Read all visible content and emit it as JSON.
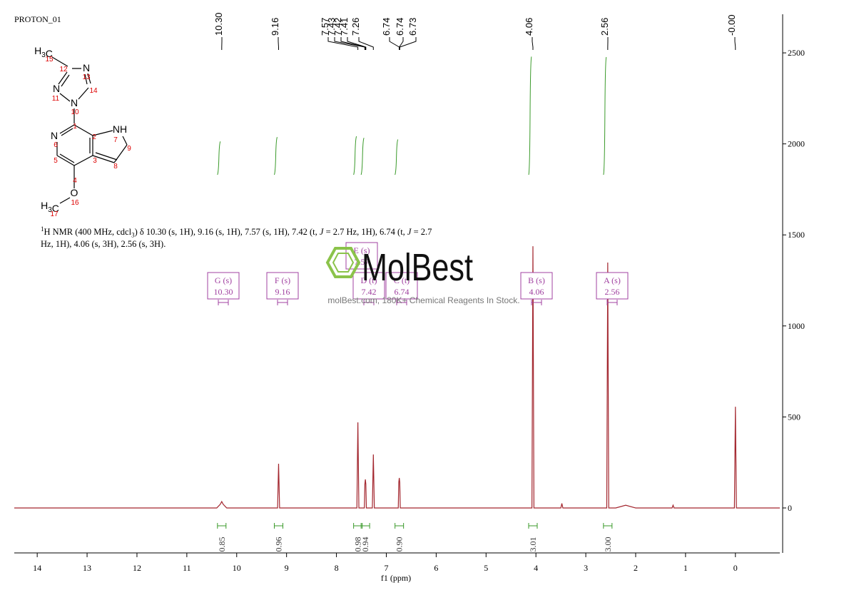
{
  "title": "PROTON_01",
  "caption": [
    "1",
    "H NMR (400 MHz, cdcl",
    "3",
    ") δ 10.30 (s, 1H), 9.16 (s, 1H), 7.57 (s, 1H), 7.42 (t, ",
    "J",
    " = 2.7 Hz, 1H), 6.74 (t, ",
    "J",
    " = 2.7 Hz, 1H), 4.06 (s, 3H), 2.56 (s, 3H)."
  ],
  "structure": {
    "atoms": [
      "H3C",
      "N",
      "N",
      "N",
      "N",
      "NH",
      "O",
      "H3C"
    ],
    "numbers": [
      "1",
      "2",
      "3",
      "4",
      "5",
      "6",
      "7",
      "8",
      "9",
      "10",
      "11",
      "12",
      "13",
      "14",
      "15",
      "16",
      "17"
    ]
  },
  "watermark": {
    "brand": "MolBest",
    "tagline": "molBest.com, 180K+ Chemical Reagents In Stock."
  },
  "chart_data": {
    "type": "line",
    "xlabel": "f1 (ppm)",
    "color": "#a3262e",
    "xlim": [
      14.46,
      -0.89
    ],
    "ylim": [
      -247,
      2712
    ],
    "xticks": [
      14,
      13,
      12,
      11,
      10,
      9,
      8,
      7,
      6,
      5,
      4,
      3,
      2,
      1,
      0
    ],
    "yticks": [
      0,
      500,
      1000,
      1500,
      2000,
      2500
    ],
    "spectrum": {
      "x": [
        14.46,
        10.4,
        10.33,
        10.3,
        10.27,
        10.2,
        9.18,
        9.16,
        9.14,
        7.59,
        7.57,
        7.55,
        7.44,
        7.43,
        7.42,
        7.41,
        7.4,
        7.28,
        7.26,
        7.24,
        6.76,
        6.75,
        6.74,
        6.73,
        6.72,
        4.08,
        4.06,
        4.04,
        3.5,
        3.48,
        3.46,
        2.58,
        2.56,
        2.54,
        2.4,
        2.2,
        2.0,
        1.27,
        1.25,
        1.23,
        0.02,
        0.0,
        -0.02,
        -0.89
      ],
      "values": [
        0,
        0,
        20,
        35,
        20,
        0,
        0,
        243,
        0,
        0,
        470,
        0,
        0,
        130,
        157,
        130,
        0,
        0,
        294,
        0,
        0,
        140,
        165,
        140,
        0,
        0,
        1438,
        0,
        0,
        25,
        0,
        0,
        1348,
        0,
        0,
        15,
        0,
        0,
        15,
        0,
        0,
        556,
        0,
        0
      ]
    },
    "peak_labels": [
      {
        "value": 10.3,
        "label": "10.30"
      },
      {
        "value": 9.16,
        "label": "9.16"
      },
      {
        "value": 7.57,
        "label": "7.57"
      },
      {
        "value": 7.43,
        "label": "7.43"
      },
      {
        "value": 7.42,
        "label": "7.42"
      },
      {
        "value": 7.41,
        "label": "7.41"
      },
      {
        "value": 7.26,
        "label": "7.26"
      },
      {
        "value": 6.74,
        "label": "6.74"
      },
      {
        "value": 6.74,
        "label": "6.74"
      },
      {
        "value": 6.73,
        "label": "6.73"
      },
      {
        "value": 4.06,
        "label": "4.06"
      },
      {
        "value": 2.56,
        "label": "2.56"
      },
      {
        "value": 0,
        "label": "-0.00"
      }
    ],
    "integrals": [
      {
        "ppm": 10.3,
        "value": 0.85,
        "label": "0.85"
      },
      {
        "ppm": 9.16,
        "value": 0.96,
        "label": "0.96"
      },
      {
        "ppm": 7.57,
        "value": 0.98,
        "label": "0.98"
      },
      {
        "ppm": 7.42,
        "value": 0.94,
        "label": "0.94"
      },
      {
        "ppm": 6.74,
        "value": 0.9,
        "label": "0.90"
      },
      {
        "ppm": 4.06,
        "value": 3.01,
        "label": "3.01"
      },
      {
        "ppm": 2.56,
        "value": 3,
        "label": "3.00"
      }
    ],
    "multiplets": [
      {
        "letter": "G",
        "mult": "(s)",
        "shift": "10.30"
      },
      {
        "letter": "F",
        "mult": "(s)",
        "shift": "9.16"
      },
      {
        "letter": "E",
        "mult": "(s)",
        "shift": "7.57"
      },
      {
        "letter": "D",
        "mult": "(t)",
        "shift": "7.42"
      },
      {
        "letter": "C",
        "mult": "(t)",
        "shift": "6.74"
      },
      {
        "letter": "B",
        "mult": "(s)",
        "shift": "4.06"
      },
      {
        "letter": "A",
        "mult": "(s)",
        "shift": "2.56"
      }
    ]
  }
}
